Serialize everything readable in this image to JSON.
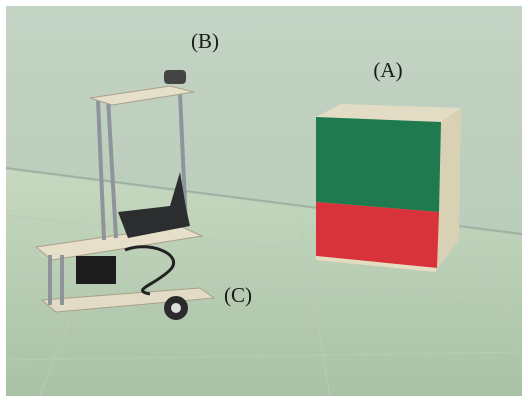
{
  "labels": [
    "(B)",
    "(A)",
    "(C)"
  ]
}
